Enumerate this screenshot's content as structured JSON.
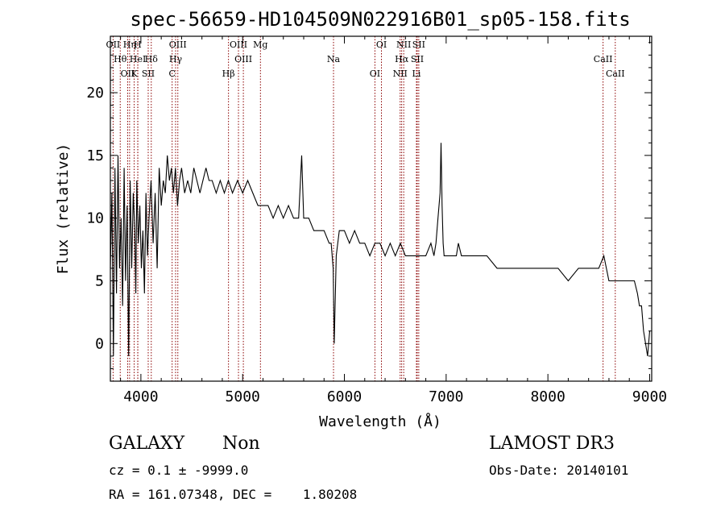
{
  "chart_data": {
    "type": "line",
    "title": "spec-56659-HD104509N022916B01_sp05-158.fits",
    "xlabel": "Wavelength (Å)",
    "ylabel": "Flux (relative)",
    "xlim": [
      3700,
      9020
    ],
    "ylim": [
      -3,
      24.5
    ],
    "xticks": [
      4000,
      5000,
      6000,
      7000,
      8000,
      9000
    ],
    "yticks": [
      0,
      5,
      10,
      15,
      20
    ],
    "grid": false,
    "legend": "none",
    "line_color": "#000000",
    "marker_color": "#8b0000",
    "series": [
      {
        "x": [
          3700,
          3715,
          3730,
          3745,
          3760,
          3775,
          3790,
          3805,
          3820,
          3835,
          3850,
          3865,
          3880,
          3895,
          3910,
          3925,
          3940,
          3950,
          3960,
          3975,
          3990,
          4005,
          4020,
          4035,
          4050,
          4065,
          4080,
          4100,
          4120,
          4140,
          4160,
          4180,
          4200,
          4220,
          4240,
          4260,
          4280,
          4300,
          4320,
          4340,
          4360,
          4380,
          4400,
          4430,
          4460,
          4490,
          4520,
          4550,
          4580,
          4610,
          4640,
          4670,
          4700,
          4740,
          4780,
          4820,
          4860,
          4900,
          4950,
          5000,
          5050,
          5100,
          5150,
          5200,
          5250,
          5300,
          5350,
          5400,
          5450,
          5500,
          5550,
          5580,
          5600,
          5650,
          5700,
          5750,
          5800,
          5850,
          5870,
          5890,
          5900,
          5920,
          5950,
          6000,
          6050,
          6100,
          6150,
          6200,
          6250,
          6300,
          6350,
          6400,
          6450,
          6500,
          6550,
          6600,
          6650,
          6700,
          6750,
          6800,
          6850,
          6880,
          6900,
          6920,
          6940,
          6950,
          6960,
          6970,
          6980,
          7000,
          7050,
          7100,
          7120,
          7150,
          7200,
          7250,
          7300,
          7400,
          7500,
          7600,
          7700,
          7800,
          7900,
          8000,
          8100,
          8200,
          8300,
          8400,
          8500,
          8550,
          8600,
          8650,
          8700,
          8750,
          8800,
          8850,
          8880,
          8900,
          8920,
          8940,
          8960,
          8980,
          9000
        ],
        "y": [
          6,
          12,
          -1,
          14,
          4,
          15,
          6,
          10,
          3,
          14,
          5,
          11,
          -1,
          13,
          6,
          12,
          9,
          4,
          13,
          8,
          11,
          6,
          9,
          4,
          12,
          7,
          10,
          13,
          8,
          12,
          6,
          14,
          11,
          13,
          12,
          15,
          13,
          14,
          12,
          14,
          11,
          13,
          14,
          12,
          13,
          12,
          14,
          13,
          12,
          13,
          14,
          13,
          13,
          12,
          13,
          12,
          13,
          12,
          13,
          12,
          13,
          12,
          11,
          11,
          11,
          10,
          11,
          10,
          11,
          10,
          10,
          15,
          10,
          10,
          9,
          9,
          9,
          8,
          8,
          6,
          0,
          7,
          9,
          9,
          8,
          9,
          8,
          8,
          7,
          8,
          8,
          7,
          8,
          7,
          8,
          7,
          7,
          7,
          7,
          7,
          8,
          7,
          8,
          10,
          12,
          16,
          11,
          8,
          7,
          7,
          7,
          7,
          8,
          7,
          7,
          7,
          7,
          7,
          6,
          6,
          6,
          6,
          6,
          6,
          6,
          5,
          6,
          6,
          6,
          7,
          5,
          5,
          5,
          5,
          5,
          5,
          4,
          3,
          3,
          1,
          0,
          -1,
          1
        ]
      }
    ],
    "lines": [
      {
        "name": "OII",
        "x": 3727
      },
      {
        "name": "Hθ",
        "x": 3797
      },
      {
        "name": "OII",
        "x": 3870
      },
      {
        "name": "Hη",
        "x": 3889
      },
      {
        "name": "HeI",
        "x": 3970
      },
      {
        "name": "K",
        "x": 3934
      },
      {
        "name": "H",
        "x": 3969
      },
      {
        "name": "Hδ",
        "x": 4102
      },
      {
        "name": "SII",
        "x": 4072
      },
      {
        "name": "OIII",
        "x": 4363
      },
      {
        "name": "Hγ",
        "x": 4341
      },
      {
        "name": "C",
        "x": 4307
      },
      {
        "name": "OIII",
        "x": 4959
      },
      {
        "name": "OIII",
        "x": 5007
      },
      {
        "name": "Hβ",
        "x": 4861
      },
      {
        "name": "Mg",
        "x": 5175
      },
      {
        "name": "Na",
        "x": 5893
      },
      {
        "name": "OI",
        "x": 6300
      },
      {
        "name": "OI",
        "x": 6364
      },
      {
        "name": "Hα",
        "x": 6563
      },
      {
        "name": "NII",
        "x": 6548
      },
      {
        "name": "NII",
        "x": 6583
      },
      {
        "name": "SII",
        "x": 6716
      },
      {
        "name": "Li",
        "x": 6708
      },
      {
        "name": "SII",
        "x": 6731
      },
      {
        "name": "CaII",
        "x": 8542
      },
      {
        "name": "CaII",
        "x": 8662
      }
    ]
  },
  "footer": {
    "obj_class": "GALAXY",
    "obj_subclass": "Non",
    "survey": "LAMOST DR3",
    "redshift": "cz = 0.1 ± -9999.0",
    "obs_date": "Obs-Date: 20140101",
    "coords": "RA = 161.07348, DEC =    1.80208"
  }
}
